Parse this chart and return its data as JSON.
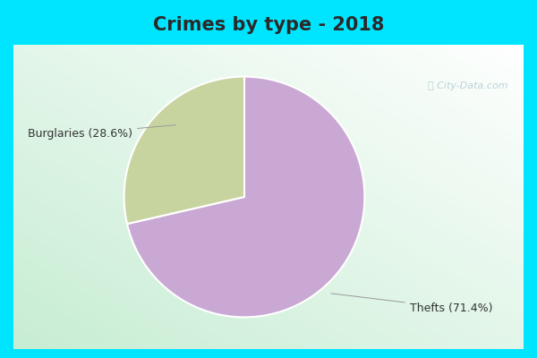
{
  "title": "Crimes by type - 2018",
  "slices": [
    71.4,
    28.6
  ],
  "labels": [
    "Thefts (71.4%)",
    "Burglaries (28.6%)"
  ],
  "colors": [
    "#c9a8d4",
    "#c8d4a0"
  ],
  "background_cyan": "#00e5ff",
  "watermark": "ⓘ City-Data.com",
  "title_fontsize": 15,
  "label_fontsize": 9,
  "startangle": 90
}
